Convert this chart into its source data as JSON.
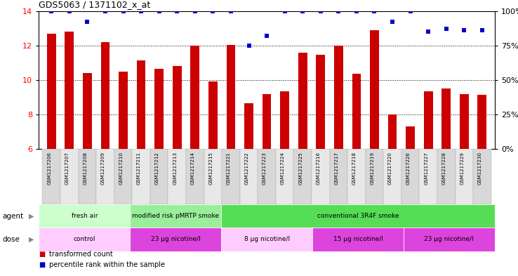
{
  "title": "GDS5063 / 1371102_x_at",
  "samples": [
    "GSM1217206",
    "GSM1217207",
    "GSM1217208",
    "GSM1217209",
    "GSM1217210",
    "GSM1217211",
    "GSM1217212",
    "GSM1217213",
    "GSM1217214",
    "GSM1217215",
    "GSM1217221",
    "GSM1217222",
    "GSM1217223",
    "GSM1217224",
    "GSM1217225",
    "GSM1217216",
    "GSM1217217",
    "GSM1217218",
    "GSM1217219",
    "GSM1217220",
    "GSM1217226",
    "GSM1217227",
    "GSM1217228",
    "GSM1217229",
    "GSM1217230"
  ],
  "transformed_count": [
    12.7,
    12.8,
    10.4,
    12.2,
    10.5,
    11.15,
    10.65,
    10.8,
    12.0,
    9.9,
    12.05,
    8.65,
    9.2,
    9.35,
    11.6,
    11.45,
    12.0,
    10.35,
    12.9,
    8.0,
    7.3,
    9.35,
    9.5,
    9.2,
    9.15
  ],
  "percentile_rank": [
    100,
    100,
    92,
    100,
    100,
    100,
    100,
    100,
    100,
    100,
    100,
    75,
    82,
    100,
    100,
    100,
    100,
    100,
    100,
    92,
    100,
    85,
    87,
    86,
    86
  ],
  "bar_color": "#cc0000",
  "dot_color": "#0000cc",
  "ylim_left": [
    6,
    14
  ],
  "ylim_right": [
    0,
    100
  ],
  "yticks_left": [
    6,
    8,
    10,
    12,
    14
  ],
  "yticks_right": [
    0,
    25,
    50,
    75,
    100
  ],
  "agent_groups": [
    {
      "label": "fresh air",
      "start": 0,
      "end": 5,
      "color": "#ccffcc"
    },
    {
      "label": "modified risk pMRTP smoke",
      "start": 5,
      "end": 10,
      "color": "#99ee99"
    },
    {
      "label": "conventional 3R4F smoke",
      "start": 10,
      "end": 25,
      "color": "#55dd55"
    }
  ],
  "dose_groups": [
    {
      "label": "control",
      "start": 0,
      "end": 5,
      "color": "#ffccff"
    },
    {
      "label": "23 μg nicotine/l",
      "start": 5,
      "end": 10,
      "color": "#dd44dd"
    },
    {
      "label": "8 μg nicotine/l",
      "start": 10,
      "end": 15,
      "color": "#ffccff"
    },
    {
      "label": "15 μg nicotine/l",
      "start": 15,
      "end": 20,
      "color": "#dd44dd"
    },
    {
      "label": "23 μg nicotine/l",
      "start": 20,
      "end": 25,
      "color": "#dd44dd"
    }
  ],
  "legend_items": [
    {
      "label": "transformed count",
      "color": "#cc0000"
    },
    {
      "label": "percentile rank within the sample",
      "color": "#0000cc"
    }
  ],
  "xtick_colors": [
    "#d8d8d8",
    "#e8e8e8"
  ]
}
